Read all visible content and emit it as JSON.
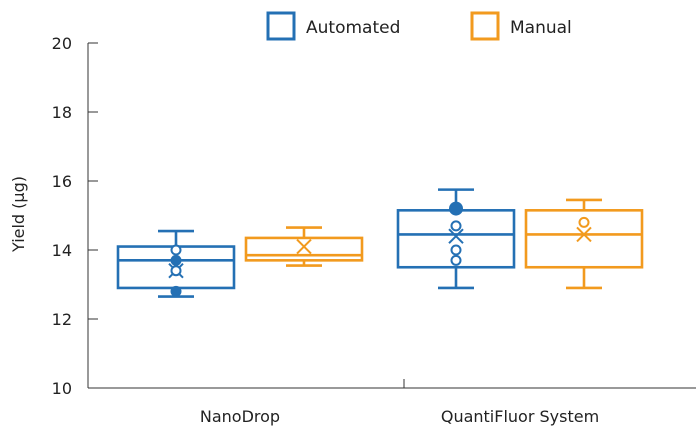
{
  "chart_data": {
    "type": "boxplot",
    "ylabel": "Yield (µg)",
    "ylim": [
      10,
      20
    ],
    "yticks": [
      10,
      12,
      14,
      16,
      18,
      20
    ],
    "categories": [
      "NanoDrop",
      "QuantiFluor System"
    ],
    "legend_position": "top-right",
    "grid": false,
    "series": [
      {
        "name": "Automated",
        "color": "#2470b4",
        "boxes": [
          {
            "category": "NanoDrop",
            "whisker_low": 12.65,
            "q1": 12.9,
            "median": 13.7,
            "q3": 14.1,
            "whisker_high": 14.55,
            "mean": 13.4,
            "outliers_filled": [
              12.8,
              13.7
            ],
            "outliers_open": [
              14.0,
              13.4
            ]
          },
          {
            "category": "QuantiFluor System",
            "whisker_low": 12.9,
            "q1": 13.5,
            "median": 14.45,
            "q3": 15.15,
            "whisker_high": 15.75,
            "mean": 14.4,
            "outliers_filled": [
              15.2
            ],
            "outliers_open": [
              14.7,
              14.0,
              13.7
            ]
          }
        ]
      },
      {
        "name": "Manual",
        "color": "#f29a1e",
        "boxes": [
          {
            "category": "NanoDrop",
            "whisker_low": 13.55,
            "q1": 13.7,
            "median": 13.85,
            "q3": 14.35,
            "whisker_high": 14.65,
            "mean": 14.1,
            "outliers_filled": [],
            "outliers_open": []
          },
          {
            "category": "QuantiFluor System",
            "whisker_low": 12.9,
            "q1": 13.5,
            "median": 14.45,
            "q3": 15.15,
            "whisker_high": 15.45,
            "mean": 14.45,
            "outliers_filled": [],
            "outliers_open": [
              14.8
            ]
          }
        ]
      }
    ]
  }
}
